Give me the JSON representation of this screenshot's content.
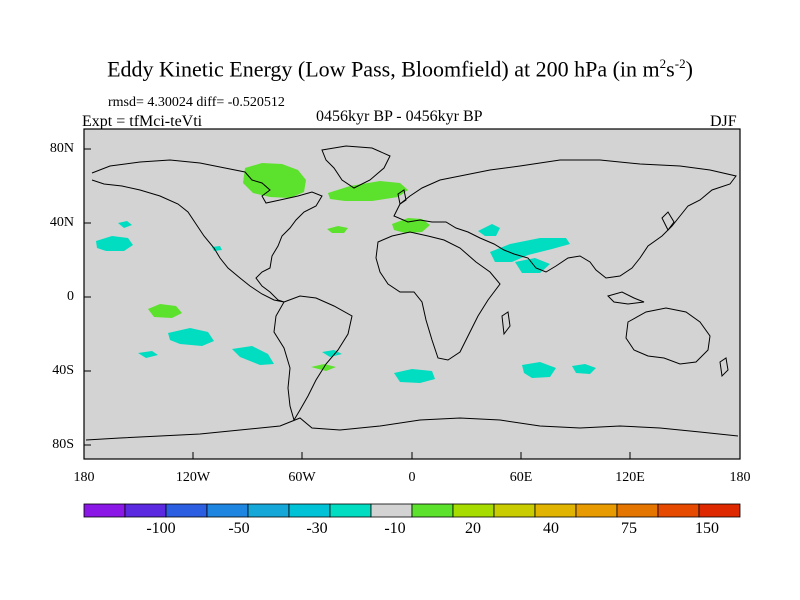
{
  "title": {
    "main": "Eddy Kinetic Energy (Low Pass, Bloomfield) at 200 hPa (in m",
    "sup1": "2",
    "mid": "s",
    "sup2": "-2",
    "end": ")"
  },
  "stats": "rmsd= 4.30024 diff= -0.520512",
  "left_label": "Expt = tfMci-teVti",
  "center_label": "0456kyr BP - 0456kyr BP",
  "right_label": "DJF",
  "map": {
    "background_color": "#d3d3d3",
    "lat_ticks": [
      "80N",
      "40N",
      "0",
      "40S",
      "80S"
    ],
    "lon_ticks": [
      "180",
      "120W",
      "60W",
      "0",
      "60E",
      "120E",
      "180"
    ],
    "regions": [
      {
        "color": "#5ce22c",
        "region": "Hudson Bay / northern Canada"
      },
      {
        "color": "#5ce22c",
        "region": "North Atlantic south of Greenland"
      },
      {
        "color": "#5ce22c",
        "region": "Mediterranean"
      },
      {
        "color": "#00ddc0",
        "region": "North Pacific"
      },
      {
        "color": "#00ddc0",
        "region": "Middle East"
      },
      {
        "color": "#00ddc0",
        "region": "South Pacific"
      },
      {
        "color": "#00ddc0",
        "region": "Southern Indian Ocean"
      },
      {
        "color": "#5ce22c",
        "region": "Eastern tropical Pacific"
      }
    ]
  },
  "colorbar": {
    "colors": [
      "#8a17e6",
      "#5b29e0",
      "#2b5ee0",
      "#1e85e0",
      "#14a7d8",
      "#00c2d6",
      "#00ddc0",
      "#d3d3d3",
      "#5ce22c",
      "#a6dc00",
      "#c8cc00",
      "#e0b400",
      "#e89b00",
      "#e47600",
      "#e64a00",
      "#dd2800"
    ],
    "tick_labels": [
      "-100",
      "-50",
      "-30",
      "-10",
      "20",
      "40",
      "75",
      "150"
    ]
  }
}
